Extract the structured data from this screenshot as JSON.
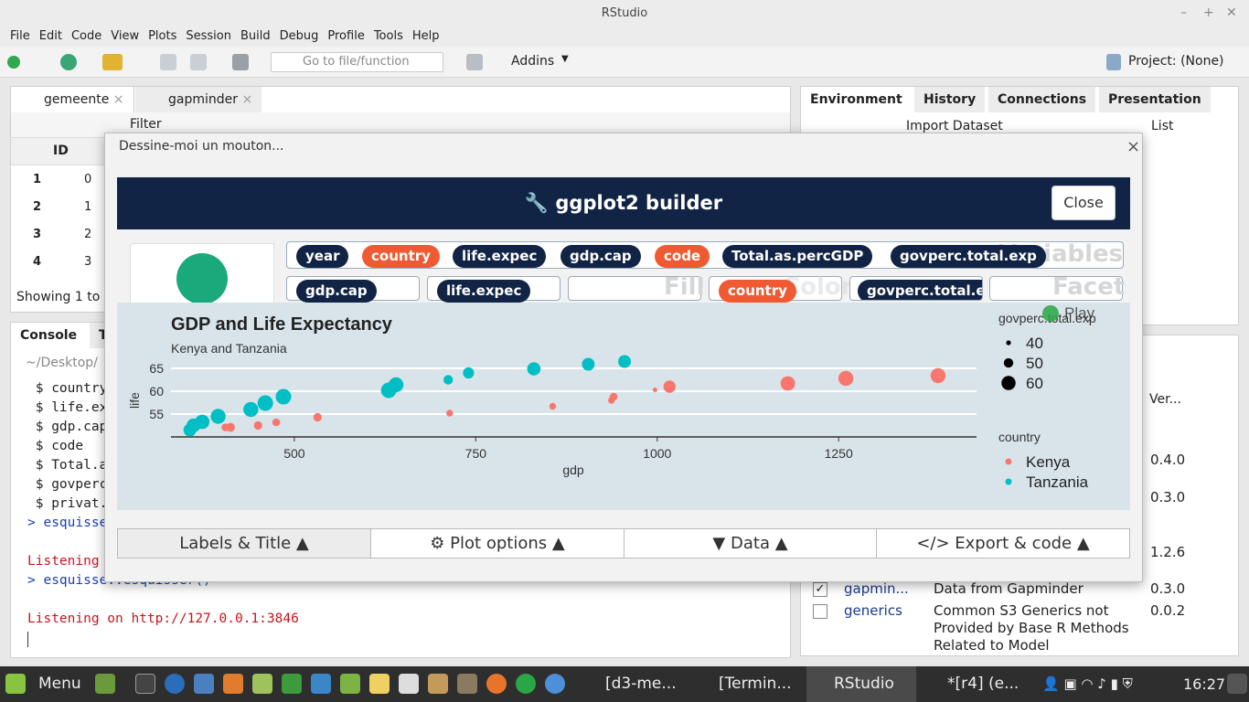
{
  "window": {
    "title": "RStudio"
  },
  "menu": [
    "File",
    "Edit",
    "Code",
    "View",
    "Plots",
    "Session",
    "Build",
    "Debug",
    "Profile",
    "Tools",
    "Help"
  ],
  "toolbar": {
    "goto_placeholder": "Go to file/function",
    "addins": "Addins",
    "project": "Project: (None)"
  },
  "source": {
    "tabs": [
      "gemeente",
      "gapminder"
    ],
    "filter": "Filter",
    "id_header": "ID",
    "rows": [
      {
        "n": "1",
        "id": "0"
      },
      {
        "n": "2",
        "id": "1"
      },
      {
        "n": "3",
        "id": "2"
      },
      {
        "n": "4",
        "id": "3"
      }
    ],
    "showing": "Showing 1 to"
  },
  "console": {
    "tab": "Console",
    "tab2": "T",
    "path": "~/Desktop/",
    "lines": [
      " $ country",
      " $ life.exp",
      " $ gdp.cap",
      " $ code",
      " $ Total.as",
      " $ govperc.",
      " $ privat.p",
      "> esquisse:",
      "",
      "Listening o",
      "> esquisse::esquisser()",
      "",
      "Listening on http://127.0.0.1:3846"
    ]
  },
  "env": {
    "tabs": [
      "Environment",
      "History",
      "Connections",
      "Presentation"
    ],
    "import": "Import Dataset",
    "list": "List"
  },
  "packages": {
    "ver_header": "Ver...",
    "versions": [
      "0.4.0",
      "0.3.0",
      "1.2.6"
    ],
    "rows": [
      {
        "name": "gapmin...",
        "desc": "Data from Gapminder",
        "ver": "0.3.0",
        "checked": true
      },
      {
        "name": "generics",
        "desc": "Common S3 Generics not Provided by Base R Methods Related to Model",
        "ver": "0.0.2",
        "checked": false
      }
    ]
  },
  "dialog": {
    "title": "Dessine-moi un mouton...",
    "builder_title": "ggplot2 builder",
    "close": "Close",
    "variables": [
      "year",
      "country",
      "life.expec",
      "gdp.cap",
      "code",
      "Total.as.percGDP",
      "govperc.total.exp"
    ],
    "variables_ghost": "Variables",
    "zones": {
      "x": "gdp.cap",
      "y": "life.expec",
      "fill": "",
      "color": "country",
      "size": "govperc.total.exp",
      "facet": ""
    },
    "fill_ghost": "Fill",
    "color_ghost": "Color",
    "facet_ghost": "Facet",
    "play": "Play",
    "buttons": [
      "Labels & Title",
      "Plot options",
      "Data",
      "Export & code"
    ]
  },
  "chart_data": {
    "type": "scatter",
    "title": "GDP and Life Expectancy",
    "subtitle": "Kenya and Tanzania",
    "xlabel": "gdp",
    "ylabel": "life",
    "xlim": [
      330,
      1440
    ],
    "ylim": [
      50,
      67
    ],
    "xticks": [
      500,
      750,
      1000,
      1250
    ],
    "yticks": [
      55,
      60,
      65
    ],
    "size_legend_title": "govperc.total.exp",
    "size_legend": [
      40,
      50,
      60
    ],
    "color_legend_title": "country",
    "series": [
      {
        "name": "Kenya",
        "color": "#f8766d",
        "points": [
          [
            405,
            52.1,
            44
          ],
          [
            412,
            52.1,
            46
          ],
          [
            450,
            52.5,
            45
          ],
          [
            475,
            53.2,
            44
          ],
          [
            532,
            54.3,
            45
          ],
          [
            714,
            55.2,
            42
          ],
          [
            856,
            56.7,
            42
          ],
          [
            937,
            58.0,
            42
          ],
          [
            940,
            58.8,
            44
          ],
          [
            997,
            60.3,
            38
          ],
          [
            1017,
            61.0,
            52
          ],
          [
            1180,
            61.7,
            56
          ],
          [
            1260,
            62.8,
            57
          ],
          [
            1387,
            63.4,
            57
          ]
        ]
      },
      {
        "name": "Tanzania",
        "color": "#00bfc4",
        "points": [
          [
            356,
            51.5,
            53
          ],
          [
            361,
            52.5,
            55
          ],
          [
            373,
            53.3,
            56
          ],
          [
            395,
            54.5,
            57
          ],
          [
            440,
            56.0,
            57
          ],
          [
            460,
            57.4,
            58
          ],
          [
            485,
            58.8,
            58
          ],
          [
            630,
            60.2,
            58
          ],
          [
            640,
            61.4,
            57
          ],
          [
            712,
            62.5,
            47
          ],
          [
            740,
            64.0,
            50
          ],
          [
            830,
            64.9,
            54
          ],
          [
            905,
            65.9,
            53
          ],
          [
            955,
            66.5,
            53
          ]
        ]
      }
    ]
  }
}
